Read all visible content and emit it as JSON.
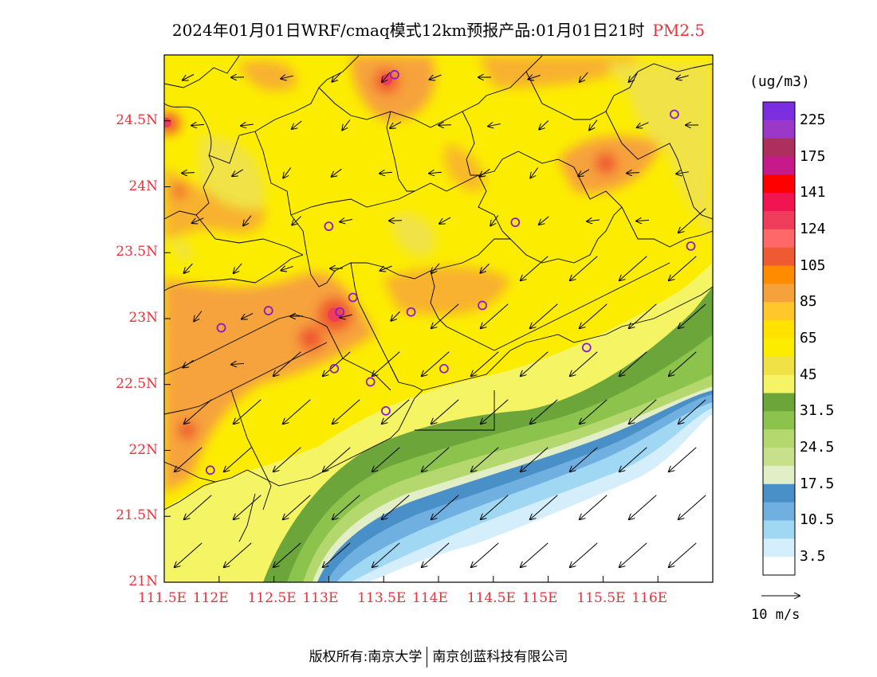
{
  "title": {
    "main": "2024年01月01日WRF/cmaq模式12km预报产品:01月01日21时",
    "pollutant": "PM2.5"
  },
  "axes": {
    "lat_labels": [
      "24.5N",
      "24N",
      "23.5N",
      "23N",
      "22.5N",
      "22N",
      "21.5N",
      "21N"
    ],
    "lat_values": [
      24.5,
      24,
      23.5,
      23,
      22.5,
      22,
      21.5,
      21
    ],
    "lon_labels": [
      "111.5E",
      "112E",
      "112.5E",
      "113E",
      "113.5E",
      "114E",
      "114.5E",
      "115E",
      "115.5E",
      "116E"
    ],
    "lon_values": [
      111.5,
      112,
      112.5,
      113,
      113.5,
      114,
      114.5,
      115,
      115.5,
      116
    ],
    "lon_range": [
      111.5,
      116.5
    ],
    "lat_range": [
      21,
      25
    ]
  },
  "legend": {
    "unit": "(ug/m3)",
    "labels": [
      "225",
      "175",
      "141",
      "124",
      "105",
      "85",
      "65",
      "45",
      "31.5",
      "24.5",
      "17.5",
      "10.5",
      "3.5"
    ],
    "colors": [
      "#7b2ee0",
      "#9b38c8",
      "#ad2f5e",
      "#c71a8a",
      "#ff0000",
      "#f01550",
      "#ee3c5a",
      "#ff6868",
      "#f05a32",
      "#ff8c00",
      "#f6a23c",
      "#ffc72c",
      "#ffe200",
      "#fced00",
      "#f0e246",
      "#f4f464",
      "#6ca53a",
      "#8cc34c",
      "#b4d86e",
      "#c8e08c",
      "#e2eec6",
      "#4a90c8",
      "#70b0e0",
      "#a0d8f4",
      "#d4eefc",
      "#ffffff"
    ]
  },
  "wind_reference": {
    "label": "10 m/s"
  },
  "footer": {
    "left": "版权所有:南京大学",
    "right": "南京创蓝科技有限公司"
  },
  "chart_data": {
    "type": "heatmap",
    "title": "2024年01月01日WRF/cmaq模式12km预报产品:01月01日21时 PM2.5",
    "xlabel": "",
    "ylabel": "",
    "xlim": [
      111.5,
      116.5
    ],
    "ylim": [
      21,
      25
    ],
    "hotspots": [
      {
        "lon": 113.05,
        "lat": 23.05,
        "level": "105-124"
      },
      {
        "lon": 113.55,
        "lat": 24.85,
        "level": "105-124"
      },
      {
        "lon": 111.52,
        "lat": 24.5,
        "level": "105-124"
      },
      {
        "lon": 115.5,
        "lat": 24.2,
        "level": "85-105"
      },
      {
        "lon": 112.2,
        "lat": 22.2,
        "level": "85-105"
      }
    ],
    "stations": [
      {
        "lon": 113.6,
        "lat": 24.85
      },
      {
        "lon": 116.15,
        "lat": 24.55
      },
      {
        "lon": 113.0,
        "lat": 23.7
      },
      {
        "lon": 114.7,
        "lat": 23.73
      },
      {
        "lon": 116.3,
        "lat": 23.55
      },
      {
        "lon": 112.45,
        "lat": 23.06
      },
      {
        "lon": 113.1,
        "lat": 23.05
      },
      {
        "lon": 113.22,
        "lat": 23.16
      },
      {
        "lon": 113.75,
        "lat": 23.05
      },
      {
        "lon": 114.4,
        "lat": 23.1
      },
      {
        "lon": 112.02,
        "lat": 22.93
      },
      {
        "lon": 115.35,
        "lat": 22.78
      },
      {
        "lon": 113.05,
        "lat": 22.62
      },
      {
        "lon": 113.38,
        "lat": 22.52
      },
      {
        "lon": 114.05,
        "lat": 22.62
      },
      {
        "lon": 113.52,
        "lat": 22.3
      },
      {
        "lon": 111.92,
        "lat": 21.85
      }
    ],
    "wind_field": "predominantly north-easterly, stronger over sea"
  }
}
